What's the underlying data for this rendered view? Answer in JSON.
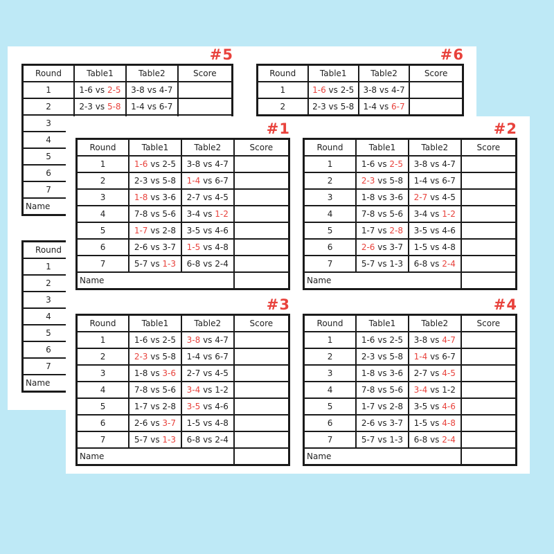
{
  "colors": {
    "background": "#bee9f6",
    "page": "#ffffff",
    "red": "#e8423c",
    "border": "#1a1a1a"
  },
  "table_headers": [
    "Round",
    "Table1",
    "Table2",
    "Score"
  ],
  "vs_label": "vs",
  "name_label": "Name",
  "sheets": [
    {
      "title": "#5",
      "name_row": true,
      "rows": [
        {
          "round": "1",
          "t1": [
            "1-6",
            "2-5"
          ],
          "t2": [
            "3-8",
            "4-7"
          ],
          "red": 1
        },
        {
          "round": "2",
          "t1": [
            "2-3",
            "5-8"
          ],
          "t2": [
            "1-4",
            "6-7"
          ],
          "red": 1
        },
        {
          "round": "3"
        },
        {
          "round": "4"
        },
        {
          "round": "5"
        },
        {
          "round": "6"
        },
        {
          "round": "7"
        }
      ]
    },
    {
      "title": "#6",
      "name_row": false,
      "rows": [
        {
          "round": "1",
          "t1": [
            "1-6",
            "2-5"
          ],
          "t2": [
            "3-8",
            "4-7"
          ],
          "red": 0
        },
        {
          "round": "2",
          "t1": [
            "2-3",
            "5-8"
          ],
          "t2": [
            "1-4",
            "6-7"
          ],
          "red": 3
        }
      ]
    },
    {
      "title": "#1",
      "name_row": true,
      "rows": [
        {
          "round": "1",
          "t1": [
            "1-6",
            "2-5"
          ],
          "t2": [
            "3-8",
            "4-7"
          ],
          "red": 0
        },
        {
          "round": "2",
          "t1": [
            "2-3",
            "5-8"
          ],
          "t2": [
            "1-4",
            "6-7"
          ],
          "red": 2
        },
        {
          "round": "3",
          "t1": [
            "1-8",
            "3-6"
          ],
          "t2": [
            "2-7",
            "4-5"
          ],
          "red": 0
        },
        {
          "round": "4",
          "t1": [
            "7-8",
            "5-6"
          ],
          "t2": [
            "3-4",
            "1-2"
          ],
          "red": 3
        },
        {
          "round": "5",
          "t1": [
            "1-7",
            "2-8"
          ],
          "t2": [
            "3-5",
            "4-6"
          ],
          "red": 0
        },
        {
          "round": "6",
          "t1": [
            "2-6",
            "3-7"
          ],
          "t2": [
            "1-5",
            "4-8"
          ],
          "red": 2
        },
        {
          "round": "7",
          "t1": [
            "5-7",
            "1-3"
          ],
          "t2": [
            "6-8",
            "2-4"
          ],
          "red": 1
        }
      ]
    },
    {
      "title": "#2",
      "name_row": true,
      "rows": [
        {
          "round": "1",
          "t1": [
            "1-6",
            "2-5"
          ],
          "t2": [
            "3-8",
            "4-7"
          ],
          "red": 1
        },
        {
          "round": "2",
          "t1": [
            "2-3",
            "5-8"
          ],
          "t2": [
            "1-4",
            "6-7"
          ],
          "red": 0
        },
        {
          "round": "3",
          "t1": [
            "1-8",
            "3-6"
          ],
          "t2": [
            "2-7",
            "4-5"
          ],
          "red": 2
        },
        {
          "round": "4",
          "t1": [
            "7-8",
            "5-6"
          ],
          "t2": [
            "3-4",
            "1-2"
          ],
          "red": 3
        },
        {
          "round": "5",
          "t1": [
            "1-7",
            "2-8"
          ],
          "t2": [
            "3-5",
            "4-6"
          ],
          "red": 1
        },
        {
          "round": "6",
          "t1": [
            "2-6",
            "3-7"
          ],
          "t2": [
            "1-5",
            "4-8"
          ],
          "red": 0
        },
        {
          "round": "7",
          "t1": [
            "5-7",
            "1-3"
          ],
          "t2": [
            "6-8",
            "2-4"
          ],
          "red": 3
        }
      ]
    },
    {
      "title": "#3",
      "name_row": true,
      "rows": [
        {
          "round": "1",
          "t1": [
            "1-6",
            "2-5"
          ],
          "t2": [
            "3-8",
            "4-7"
          ],
          "red": 2
        },
        {
          "round": "2",
          "t1": [
            "2-3",
            "5-8"
          ],
          "t2": [
            "1-4",
            "6-7"
          ],
          "red": 0
        },
        {
          "round": "3",
          "t1": [
            "1-8",
            "3-6"
          ],
          "t2": [
            "2-7",
            "4-5"
          ],
          "red": 1
        },
        {
          "round": "4",
          "t1": [
            "7-8",
            "5-6"
          ],
          "t2": [
            "3-4",
            "1-2"
          ],
          "red": 2
        },
        {
          "round": "5",
          "t1": [
            "1-7",
            "2-8"
          ],
          "t2": [
            "3-5",
            "4-6"
          ],
          "red": 2
        },
        {
          "round": "6",
          "t1": [
            "2-6",
            "3-7"
          ],
          "t2": [
            "1-5",
            "4-8"
          ],
          "red": 1
        },
        {
          "round": "7",
          "t1": [
            "5-7",
            "1-3"
          ],
          "t2": [
            "6-8",
            "2-4"
          ],
          "red": 1
        }
      ]
    },
    {
      "title": "#4",
      "name_row": true,
      "rows": [
        {
          "round": "1",
          "t1": [
            "1-6",
            "2-5"
          ],
          "t2": [
            "3-8",
            "4-7"
          ],
          "red": 3
        },
        {
          "round": "2",
          "t1": [
            "2-3",
            "5-8"
          ],
          "t2": [
            "1-4",
            "6-7"
          ],
          "red": 2
        },
        {
          "round": "3",
          "t1": [
            "1-8",
            "3-6"
          ],
          "t2": [
            "2-7",
            "4-5"
          ],
          "red": 3
        },
        {
          "round": "4",
          "t1": [
            "7-8",
            "5-6"
          ],
          "t2": [
            "3-4",
            "1-2"
          ],
          "red": 2
        },
        {
          "round": "5",
          "t1": [
            "1-7",
            "2-8"
          ],
          "t2": [
            "3-5",
            "4-6"
          ],
          "red": 3
        },
        {
          "round": "6",
          "t1": [
            "2-6",
            "3-7"
          ],
          "t2": [
            "1-5",
            "4-8"
          ],
          "red": 3
        },
        {
          "round": "7",
          "t1": [
            "5-7",
            "1-3"
          ],
          "t2": [
            "6-8",
            "2-4"
          ],
          "red": 3
        }
      ]
    }
  ],
  "partial_sheet": {
    "header": "Round",
    "rounds": [
      "1",
      "2",
      "3",
      "4",
      "5",
      "6",
      "7"
    ],
    "name_label": "Name"
  }
}
